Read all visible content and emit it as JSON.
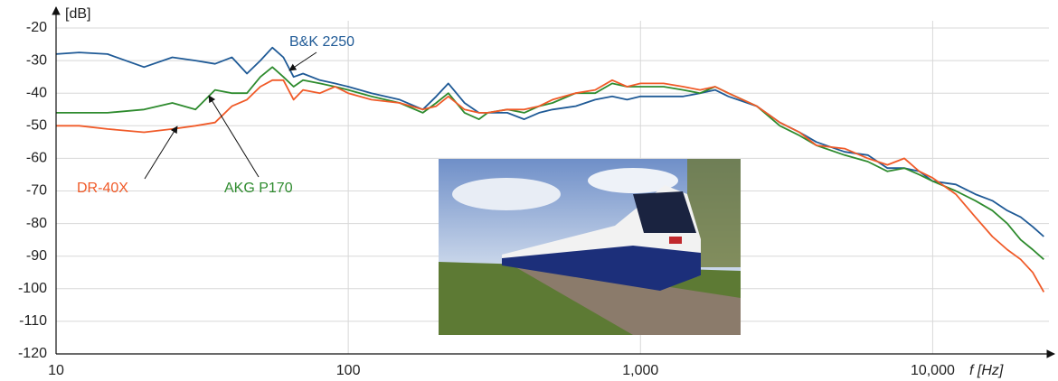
{
  "chart_data": {
    "type": "line",
    "x_label": "f [Hz]",
    "y_label": "[dB]",
    "log_x": true,
    "grid": true,
    "xlim": [
      10,
      25000
    ],
    "ylim": [
      -120,
      -20
    ],
    "xticks": [
      10,
      100,
      {
        "value": 1000,
        "label": "1,000"
      },
      {
        "value": 10000,
        "label": "10,000"
      }
    ],
    "yticks": [
      -120,
      -110,
      -100,
      -90,
      -80,
      -70,
      -60,
      -50,
      -40,
      -30,
      -20
    ],
    "x": [
      10,
      12,
      15,
      20,
      25,
      30,
      35,
      40,
      45,
      50,
      55,
      60,
      65,
      70,
      80,
      90,
      100,
      120,
      150,
      180,
      200,
      220,
      250,
      280,
      300,
      350,
      400,
      450,
      500,
      600,
      700,
      800,
      900,
      1000,
      1200,
      1400,
      1600,
      1800,
      2000,
      2500,
      3000,
      3500,
      4000,
      5000,
      6000,
      7000,
      8000,
      9000,
      10000,
      12000,
      14000,
      16000,
      18000,
      20000,
      22000,
      24000
    ],
    "series": [
      {
        "name": "B&K 2250",
        "color": "#1f5a96",
        "values": [
          -28,
          -27.5,
          -28,
          -32,
          -29,
          -30,
          -31,
          -29,
          -34,
          -30,
          -26,
          -29,
          -35,
          -34,
          -36,
          -37,
          -38,
          -40,
          -42,
          -45,
          -41,
          -37,
          -43,
          -46,
          -46,
          -46,
          -48,
          -46,
          -45,
          -44,
          -42,
          -41,
          -42,
          -41,
          -41,
          -41,
          -40,
          -39,
          -41,
          -44,
          -49,
          -52,
          -55,
          -58,
          -59,
          -63,
          -63,
          -64,
          -67,
          -68,
          -71,
          -73,
          -76,
          -78,
          -81,
          -84
        ]
      },
      {
        "name": "AKG P170",
        "color": "#2e8b2e",
        "values": [
          -46,
          -46,
          -46,
          -45,
          -43,
          -45,
          -39,
          -40,
          -40,
          -35,
          -32,
          -35,
          -38,
          -36,
          -37,
          -38,
          -39,
          -41,
          -43,
          -46,
          -43,
          -40,
          -46,
          -48,
          -46,
          -45,
          -46,
          -44,
          -43,
          -40,
          -40,
          -37,
          -38,
          -38,
          -38,
          -39,
          -40,
          -38,
          -40,
          -44,
          -50,
          -53,
          -56,
          -59,
          -61,
          -64,
          -63,
          -65,
          -67,
          -70,
          -73,
          -76,
          -80,
          -85,
          -88,
          -91
        ]
      },
      {
        "name": "DR-40X",
        "color": "#f05a28",
        "values": [
          -50,
          -50,
          -51,
          -52,
          -51,
          -50,
          -49,
          -44,
          -42,
          -38,
          -36,
          -36,
          -42,
          -39,
          -40,
          -38,
          -40,
          -42,
          -43,
          -45,
          -44,
          -41,
          -45,
          -46,
          -46,
          -45,
          -45,
          -44,
          -42,
          -40,
          -39,
          -36,
          -38,
          -37,
          -37,
          -38,
          -39,
          -38,
          -40,
          -44,
          -49,
          -52,
          -56,
          -57,
          -60,
          -62,
          -60,
          -64,
          -66,
          -71,
          -78,
          -84,
          -88,
          -91,
          -95,
          -101
        ]
      }
    ]
  }
}
